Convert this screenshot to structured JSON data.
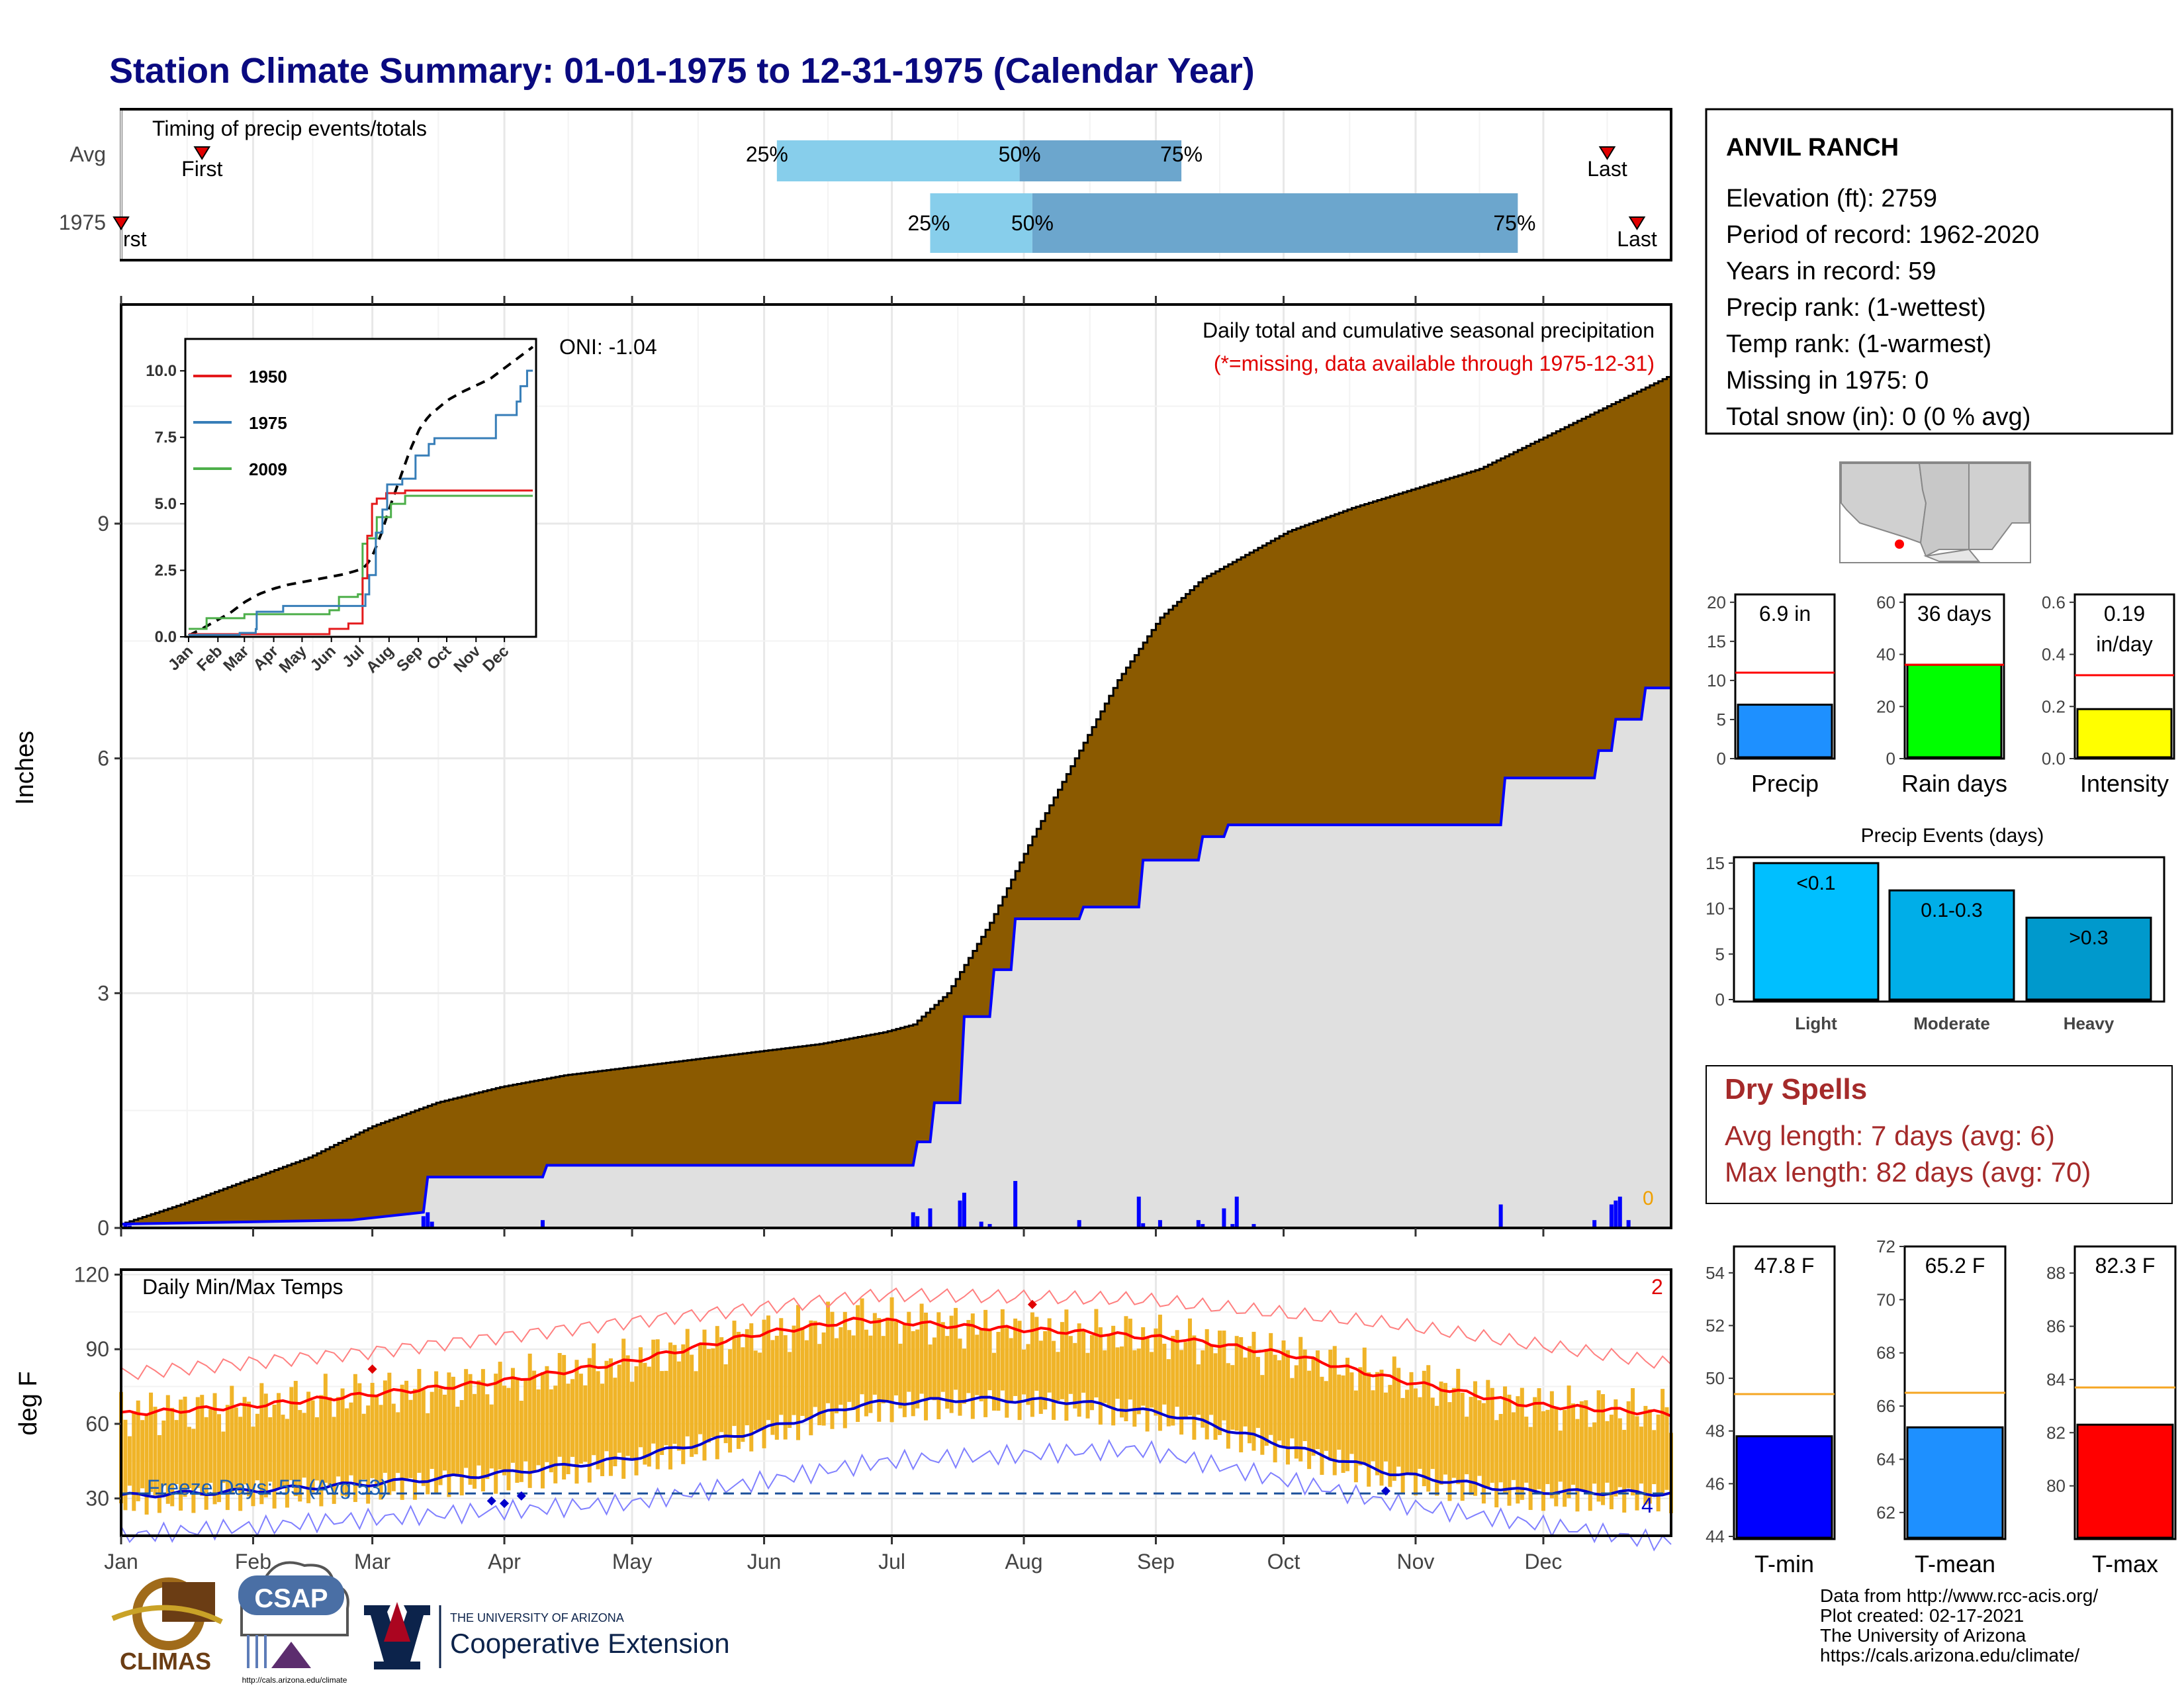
{
  "title": "Station Climate Summary: 01-01-1975 to 12-31-1975 (Calendar Year)",
  "colors": {
    "title": "#0a0a80",
    "precip_fill": "#8b5a00",
    "normal_fill": "#e0e0e0",
    "precip_line": "#0000ff",
    "daily_bar": "#0000ff",
    "temp_bar": "#f0b428",
    "max_line": "#ff0000",
    "min_line": "#0000cc",
    "dry_spell": "#a52a2a",
    "light": "#00bfff",
    "moderate": "#00aee8",
    "heavy": "#0099cc"
  },
  "timing_panel": {
    "title": "Timing of precip events/totals",
    "rows": [
      "Avg",
      "1975"
    ],
    "avg": {
      "first_label": "First",
      "last_label": "Last",
      "p25": "25%",
      "p50": "50%",
      "p75": "75%"
    },
    "year": {
      "first_label": "rst",
      "last_label": "Last",
      "p25": "25%",
      "p50": "50%",
      "p75": "75%"
    }
  },
  "precip_panel": {
    "title": "Daily total and cumulative seasonal precipitation",
    "subtitle": "(*=missing, data available through 1975-12-31)",
    "oni": "ONI: -1.04",
    "ylabel": "Inches",
    "yticks": [
      "0",
      "3",
      "6",
      "9"
    ],
    "zero_label": "0"
  },
  "inset": {
    "legend": [
      "1950",
      "1975",
      "2009"
    ],
    "yticks": [
      "0.0",
      "2.5",
      "5.0",
      "7.5",
      "10.0"
    ],
    "months": [
      "Jan",
      "Feb",
      "Mar",
      "Apr",
      "May",
      "Jun",
      "Jul",
      "Aug",
      "Sep",
      "Oct",
      "Nov",
      "Dec"
    ]
  },
  "temp_panel": {
    "title": "Daily Min/Max Temps",
    "ylabel": "deg F",
    "yticks": [
      "30",
      "60",
      "90",
      "120"
    ],
    "freeze": "Freeze Days: 55 (Avg:53)",
    "count_hot": "2",
    "count_cold": "4"
  },
  "months": [
    "Jan",
    "Feb",
    "Mar",
    "Apr",
    "May",
    "Jun",
    "Jul",
    "Aug",
    "Sep",
    "Oct",
    "Nov",
    "Dec"
  ],
  "station": {
    "name": "ANVIL RANCH",
    "lines": [
      "Elevation (ft): 2759",
      "Period of record: 1962-2020",
      "Years in record: 59",
      "Precip rank:  (1-wettest)",
      "Temp rank:  (1-warmest)",
      "Missing in 1975: 0",
      "Total snow (in): 0 (0 % avg)"
    ]
  },
  "mini_bars": [
    {
      "label": "Precip",
      "value_text": "6.9 in",
      "yticks": [
        "0",
        "5",
        "10",
        "15",
        "20"
      ],
      "color": "#1e90ff"
    },
    {
      "label": "Rain days",
      "value_text": "36 days",
      "yticks": [
        "0",
        "20",
        "40",
        "60"
      ],
      "color": "#00ff00"
    },
    {
      "label": "Intensity",
      "value_text": "0.19",
      "value_text2": "in/day",
      "yticks": [
        "0.0",
        "0.2",
        "0.4",
        "0.6"
      ],
      "color": "#ffff00"
    }
  ],
  "events": {
    "title": "Precip Events (days)",
    "yticks": [
      "0",
      "5",
      "10",
      "15"
    ],
    "categories": [
      "Light",
      "Moderate",
      "Heavy"
    ],
    "labels": [
      "<0.1",
      "0.1-0.3",
      ">0.3"
    ]
  },
  "dry_spells": {
    "title": "Dry Spells",
    "avg": "Avg length: 7 days (avg: 6)",
    "max": "Max length: 82 days (avg: 70)"
  },
  "temp_bars": [
    {
      "label": "T-min",
      "value_text": "47.8 F",
      "yticks": [
        "44",
        "46",
        "48",
        "50",
        "52",
        "54"
      ],
      "color": "#0000ff"
    },
    {
      "label": "T-mean",
      "value_text": "65.2 F",
      "yticks": [
        "62",
        "64",
        "66",
        "68",
        "70",
        "72"
      ],
      "color": "#1e90ff"
    },
    {
      "label": "T-max",
      "value_text": "82.3 F",
      "yticks": [
        "80",
        "82",
        "84",
        "86",
        "88"
      ],
      "color": "#ff0000"
    }
  ],
  "logos": {
    "climas": "CLIMAS",
    "csap": "CSAP",
    "csap_url": "http://cals.arizona.edu/climate",
    "ua_small": "THE UNIVERSITY OF ARIZONA",
    "ua_big": "Cooperative Extension"
  },
  "footer": [
    "Data from http://www.rcc-acis.org/",
    "Plot created: 02-17-2021",
    "The University of Arizona",
    "https://cals.arizona.edu/climate/"
  ],
  "chart_data": [
    {
      "type": "bar",
      "title": "Timing of precip events/totals",
      "categories": [
        "Avg",
        "1975"
      ],
      "series": [
        {
          "name": "Avg",
          "first_doy": 20,
          "p25_doy": 155,
          "p50_doy": 212,
          "p75_doy": 250,
          "last_doy": 350
        },
        {
          "name": "1975",
          "first_doy": 1,
          "p25_doy": 191,
          "p50_doy": 215,
          "p75_doy": 329,
          "last_doy": 357
        }
      ]
    },
    {
      "type": "area",
      "title": "Daily total and cumulative seasonal precipitation",
      "ylabel": "Inches",
      "ylim": [
        0,
        11.8
      ],
      "normal_cumulative": {
        "doy": [
          1,
          15,
          30,
          45,
          60,
          75,
          90,
          105,
          120,
          135,
          150,
          165,
          180,
          187,
          195,
          205,
          215,
          225,
          235,
          245,
          255,
          265,
          275,
          290,
          305,
          320,
          335,
          350,
          365
        ],
        "inches": [
          0.05,
          0.3,
          0.6,
          0.9,
          1.3,
          1.6,
          1.8,
          1.95,
          2.05,
          2.15,
          2.25,
          2.35,
          2.5,
          2.6,
          3.0,
          3.9,
          5.0,
          6.0,
          7.0,
          7.8,
          8.3,
          8.6,
          8.9,
          9.2,
          9.45,
          9.7,
          10.1,
          10.5,
          10.9
        ]
      },
      "year_cumulative": {
        "doy": [
          1,
          55,
          72,
          73,
          100,
          101,
          187,
          188,
          191,
          192,
          198,
          199,
          205,
          206,
          210,
          211,
          226,
          227,
          240,
          241,
          254,
          255,
          260,
          261,
          325,
          326,
          347,
          348,
          351,
          352,
          358,
          359,
          365
        ],
        "inches": [
          0.05,
          0.1,
          0.2,
          0.65,
          0.65,
          0.8,
          0.8,
          1.1,
          1.1,
          1.6,
          1.6,
          2.7,
          2.7,
          3.3,
          3.3,
          3.95,
          3.95,
          4.1,
          4.1,
          4.7,
          4.7,
          5.0,
          5.0,
          5.15,
          5.15,
          5.75,
          5.75,
          6.1,
          6.1,
          6.5,
          6.5,
          6.9,
          6.9
        ]
      },
      "daily_bars": {
        "doy": [
          2,
          3,
          72,
          73,
          74,
          100,
          187,
          188,
          191,
          198,
          199,
          203,
          205,
          211,
          226,
          240,
          241,
          245,
          254,
          255,
          260,
          262,
          263,
          267,
          325,
          347,
          351,
          352,
          353,
          355
        ],
        "inches": [
          0.05,
          0.03,
          0.15,
          0.2,
          0.08,
          0.1,
          0.2,
          0.15,
          0.25,
          0.35,
          0.45,
          0.08,
          0.05,
          0.6,
          0.1,
          0.4,
          0.06,
          0.1,
          0.1,
          0.05,
          0.25,
          0.05,
          0.4,
          0.05,
          0.3,
          0.1,
          0.3,
          0.35,
          0.4,
          0.1
        ]
      }
    },
    {
      "type": "line",
      "title": "Daily Min/Max Temps",
      "ylabel": "deg F",
      "ylim": [
        15,
        122
      ],
      "freeze_line": 32,
      "normal_max": {
        "doy": [
          1,
          30,
          60,
          90,
          120,
          150,
          175,
          200,
          225,
          250,
          275,
          300,
          330,
          365
        ],
        "degF": [
          64,
          67,
          72,
          77,
          85,
          96,
          102,
          99,
          97,
          94,
          88,
          78,
          68,
          64
        ]
      },
      "normal_min": {
        "doy": [
          1,
          30,
          60,
          90,
          120,
          150,
          175,
          200,
          225,
          250,
          275,
          300,
          330,
          365
        ],
        "degF": [
          31,
          33,
          36,
          40,
          46,
          57,
          68,
          70,
          69,
          63,
          51,
          40,
          33,
          32
        ]
      },
      "record_max": {
        "doy": [
          1,
          60,
          120,
          180,
          240,
          300,
          365
        ],
        "degF": [
          80,
          89,
          101,
          112,
          110,
          100,
          84
        ]
      },
      "record_min": {
        "doy": [
          1,
          60,
          120,
          180,
          240,
          300,
          365
        ],
        "degF": [
          15,
          22,
          28,
          45,
          50,
          28,
          12
        ]
      }
    },
    {
      "type": "bar",
      "title": "Precip",
      "categories": [
        "Precip"
      ],
      "values": [
        6.9
      ],
      "avg": 11,
      "ylim": [
        0,
        21
      ]
    },
    {
      "type": "bar",
      "title": "Rain days",
      "categories": [
        "Rain days"
      ],
      "values": [
        36
      ],
      "avg": 36,
      "ylim": [
        0,
        63
      ]
    },
    {
      "type": "bar",
      "title": "Intensity",
      "categories": [
        "Intensity"
      ],
      "values": [
        0.19
      ],
      "avg": 0.32,
      "ylim": [
        0,
        0.63
      ]
    },
    {
      "type": "bar",
      "title": "Precip Events (days)",
      "categories": [
        "Light",
        "Moderate",
        "Heavy"
      ],
      "values": [
        15,
        12,
        9
      ],
      "ylim": [
        0,
        15.5
      ]
    },
    {
      "type": "bar",
      "title": "T-min",
      "categories": [
        "T-min"
      ],
      "values": [
        47.8
      ],
      "avg": 49.4,
      "ylim": [
        43.9,
        55
      ]
    },
    {
      "type": "bar",
      "title": "T-mean",
      "categories": [
        "T-mean"
      ],
      "values": [
        65.2
      ],
      "avg": 66.5,
      "ylim": [
        61,
        72
      ]
    },
    {
      "type": "bar",
      "title": "T-max",
      "categories": [
        "T-max"
      ],
      "values": [
        82.3
      ],
      "avg": 83.7,
      "ylim": [
        78,
        89
      ]
    }
  ]
}
